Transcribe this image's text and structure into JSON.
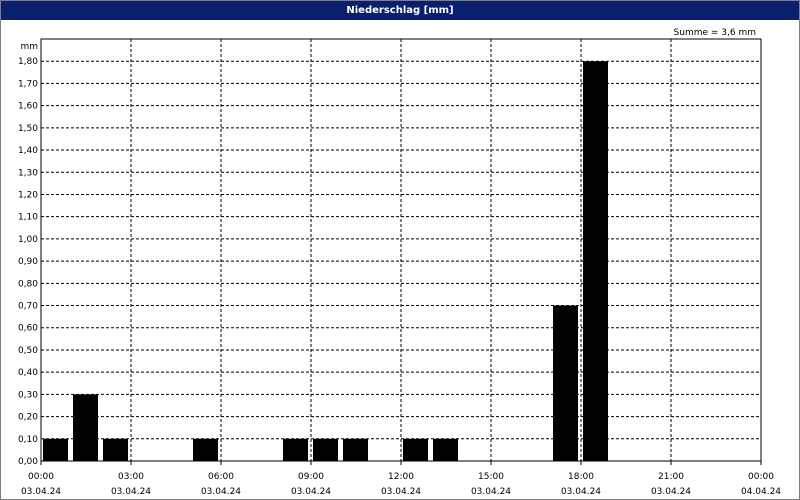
{
  "window": {
    "title": "Niederschlag [mm]"
  },
  "chart_data": {
    "type": "bar",
    "title": "Niederschlag [mm]",
    "ylabel": "mm",
    "annotation": "Summe = 3,6 mm",
    "ylim": [
      0,
      1.9
    ],
    "yticks": [
      "0,00",
      "0,10",
      "0,20",
      "0,30",
      "0,40",
      "0,50",
      "0,60",
      "0,70",
      "0,80",
      "0,90",
      "1,00",
      "1,10",
      "1,20",
      "1,30",
      "1,40",
      "1,50",
      "1,60",
      "1,70",
      "1,80"
    ],
    "x_range_hours": [
      0,
      24
    ],
    "xticks": [
      {
        "time": "00:00",
        "date": "03.04.24"
      },
      {
        "time": "03:00",
        "date": "03.04.24"
      },
      {
        "time": "06:00",
        "date": "03.04.24"
      },
      {
        "time": "09:00",
        "date": "03.04.24"
      },
      {
        "time": "12:00",
        "date": "03.04.24"
      },
      {
        "time": "15:00",
        "date": "03.04.24"
      },
      {
        "time": "18:00",
        "date": "03.04.24"
      },
      {
        "time": "21:00",
        "date": "03.04.24"
      },
      {
        "time": "00:00",
        "date": "04.04.24"
      }
    ],
    "interval_hours": 1,
    "bars": [
      {
        "start": "00:00",
        "value": 0.1
      },
      {
        "start": "01:00",
        "value": 0.3
      },
      {
        "start": "02:00",
        "value": 0.1
      },
      {
        "start": "05:00",
        "value": 0.1
      },
      {
        "start": "08:00",
        "value": 0.1
      },
      {
        "start": "09:00",
        "value": 0.1
      },
      {
        "start": "10:00",
        "value": 0.1
      },
      {
        "start": "12:00",
        "value": 0.1
      },
      {
        "start": "13:00",
        "value": 0.1
      },
      {
        "start": "17:00",
        "value": 0.7
      },
      {
        "start": "18:00",
        "value": 1.8
      }
    ],
    "grid": true,
    "bar_color": "#000000"
  }
}
